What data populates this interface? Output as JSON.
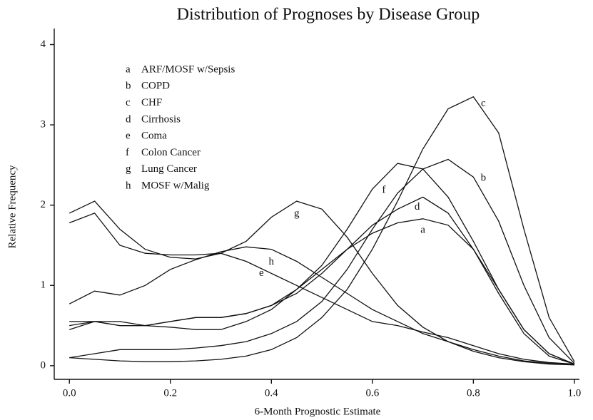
{
  "chart_data": {
    "type": "line",
    "title": "Distribution of Prognoses by Disease Group",
    "x_label": "6-Month Prognostic Estimate",
    "y_label": "Relative Frequency",
    "x": [
      0,
      0.05,
      0.1,
      0.15,
      0.2,
      0.25,
      0.3,
      0.35,
      0.4,
      0.45,
      0.5,
      0.55,
      0.6,
      0.65,
      0.7,
      0.75,
      0.8,
      0.85,
      0.9,
      0.95,
      1.0
    ],
    "series": [
      {
        "key": "a",
        "name": "ARF/MOSF w/Sepsis",
        "color": "#111111",
        "values": [
          0.45,
          0.55,
          0.55,
          0.5,
          0.48,
          0.45,
          0.45,
          0.55,
          0.7,
          0.95,
          1.2,
          1.45,
          1.65,
          1.78,
          1.83,
          1.75,
          1.45,
          0.95,
          0.45,
          0.15,
          0.02
        ]
      },
      {
        "key": "b",
        "name": "COPD",
        "color": "#111111",
        "values": [
          0.1,
          0.15,
          0.2,
          0.2,
          0.2,
          0.22,
          0.25,
          0.3,
          0.4,
          0.55,
          0.8,
          1.2,
          1.7,
          2.15,
          2.45,
          2.57,
          2.35,
          1.8,
          1.0,
          0.35,
          0.03
        ]
      },
      {
        "key": "c",
        "name": "CHF",
        "color": "#111111",
        "values": [
          0.1,
          0.08,
          0.06,
          0.05,
          0.05,
          0.06,
          0.08,
          0.12,
          0.2,
          0.35,
          0.6,
          0.95,
          1.45,
          2.05,
          2.7,
          3.2,
          3.35,
          2.9,
          1.7,
          0.6,
          0.05
        ]
      },
      {
        "key": "d",
        "name": "Cirrhosis",
        "color": "#111111",
        "values": [
          0.5,
          0.55,
          0.5,
          0.5,
          0.55,
          0.6,
          0.6,
          0.65,
          0.75,
          0.9,
          1.15,
          1.45,
          1.75,
          1.95,
          2.1,
          1.9,
          1.45,
          0.9,
          0.4,
          0.12,
          0.02
        ]
      },
      {
        "key": "e",
        "name": "Coma",
        "color": "#111111",
        "values": [
          1.78,
          1.9,
          1.5,
          1.4,
          1.38,
          1.38,
          1.4,
          1.3,
          1.15,
          1.0,
          0.85,
          0.7,
          0.55,
          0.5,
          0.42,
          0.35,
          0.25,
          0.15,
          0.08,
          0.04,
          0.02
        ]
      },
      {
        "key": "f",
        "name": "Colon Cancer",
        "color": "#111111",
        "values": [
          0.55,
          0.55,
          0.5,
          0.5,
          0.55,
          0.6,
          0.6,
          0.65,
          0.75,
          0.95,
          1.25,
          1.7,
          2.2,
          2.52,
          2.45,
          2.1,
          1.55,
          0.95,
          0.45,
          0.15,
          0.02
        ]
      },
      {
        "key": "g",
        "name": "Lung Cancer",
        "color": "#111111",
        "values": [
          1.9,
          2.05,
          1.7,
          1.45,
          1.35,
          1.33,
          1.4,
          1.55,
          1.85,
          2.05,
          1.95,
          1.6,
          1.15,
          0.75,
          0.48,
          0.3,
          0.18,
          0.1,
          0.05,
          0.02,
          0.01
        ]
      },
      {
        "key": "h",
        "name": "MOSF w/Malig",
        "color": "#111111",
        "values": [
          0.77,
          0.93,
          0.88,
          1.0,
          1.2,
          1.32,
          1.42,
          1.48,
          1.45,
          1.3,
          1.1,
          0.9,
          0.7,
          0.55,
          0.4,
          0.3,
          0.2,
          0.12,
          0.06,
          0.03,
          0.01
        ]
      }
    ],
    "xlim": [
      -0.03,
      1.01
    ],
    "ylim": [
      -0.17,
      4.2
    ],
    "xticks": [
      {
        "value": 0,
        "label": "0.0"
      },
      {
        "value": 0.2,
        "label": "0.2"
      },
      {
        "value": 0.4,
        "label": "0.4"
      },
      {
        "value": 0.6,
        "label": "0.6"
      },
      {
        "value": 0.8,
        "label": "0.8"
      },
      {
        "value": 1,
        "label": "1.0"
      }
    ],
    "yticks": [
      0,
      1,
      2,
      3,
      4
    ],
    "grid": false
  }
}
